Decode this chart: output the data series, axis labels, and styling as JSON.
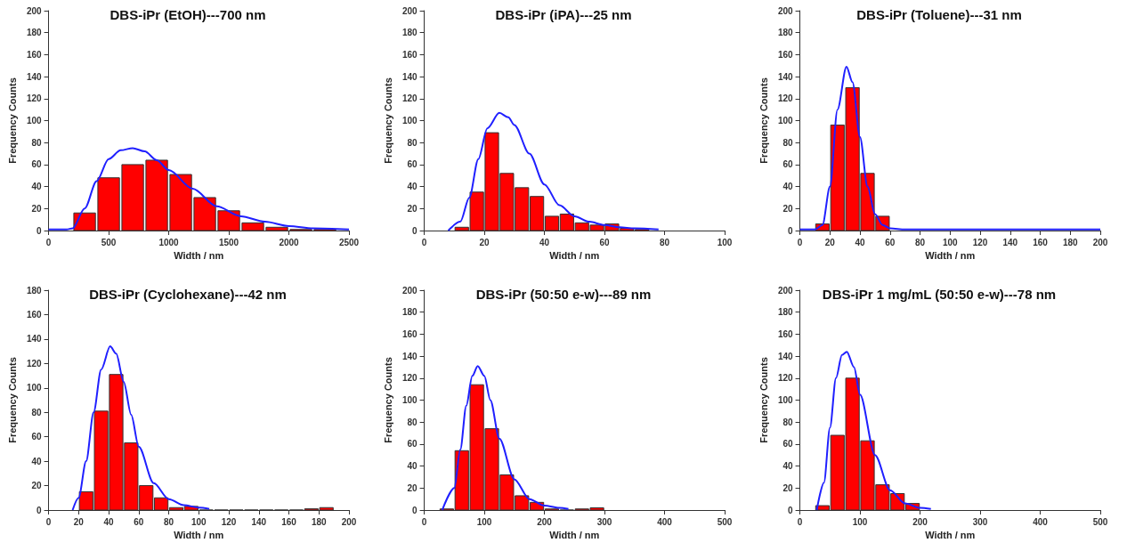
{
  "chart_data": [
    {
      "type": "histogram",
      "title": "DBS-iPr (EtOH)---700 nm",
      "xlabel": "Width / nm",
      "ylabel": "Frequency Counts",
      "bins": [
        200,
        400,
        600,
        800,
        1000,
        1200,
        1400,
        1600,
        1800,
        2000,
        2200,
        2400
      ],
      "values": [
        16,
        48,
        60,
        64,
        51,
        30,
        18,
        7,
        3,
        1,
        1
      ],
      "color": "#ff0000",
      "xlim": [
        0,
        2500
      ],
      "xticks": [
        0,
        500,
        1000,
        1500,
        2000,
        2500
      ],
      "ylim": [
        0,
        200
      ],
      "yticks": [
        0,
        20,
        40,
        60,
        80,
        100,
        120,
        140,
        160,
        180,
        200
      ],
      "grid": false,
      "marker": "none",
      "series": [
        {
          "type": "line",
          "color": "#1f1fff",
          "x": [
            0,
            150,
            200,
            300,
            400,
            500,
            600,
            700,
            800,
            900,
            1000,
            1200,
            1400,
            1600,
            1800,
            2000,
            2200,
            2500
          ],
          "values": [
            1,
            1,
            2,
            20,
            45,
            65,
            73,
            75,
            72,
            64,
            55,
            38,
            22,
            13,
            8,
            4,
            2,
            1
          ]
        }
      ]
    },
    {
      "type": "histogram",
      "title": "DBS-iPr (iPA)---25 nm",
      "xlabel": "Width / nm",
      "ylabel": "Frequency Counts",
      "bins": [
        10,
        15,
        20,
        25,
        30,
        35,
        40,
        45,
        50,
        55,
        60,
        65,
        70,
        75
      ],
      "values": [
        3,
        35,
        89,
        52,
        39,
        31,
        13,
        15,
        7,
        5,
        6,
        2,
        1
      ],
      "color": "#ff0000",
      "xlim": [
        0,
        100
      ],
      "xticks": [
        0,
        20,
        40,
        60,
        80,
        100
      ],
      "ylim": [
        0,
        200
      ],
      "yticks": [
        0,
        20,
        40,
        60,
        80,
        100,
        120,
        140,
        160,
        180,
        200
      ],
      "grid": false,
      "marker": "none",
      "series": [
        {
          "type": "line",
          "color": "#1f1fff",
          "x": [
            8,
            12,
            15,
            18,
            21,
            25,
            28,
            30,
            35,
            40,
            45,
            50,
            55,
            60,
            65,
            70,
            78
          ],
          "values": [
            0,
            8,
            30,
            65,
            93,
            107,
            103,
            96,
            70,
            42,
            23,
            13,
            8,
            5,
            3,
            2,
            1
          ]
        }
      ]
    },
    {
      "type": "histogram",
      "title": "DBS-iPr (Toluene)---31 nm",
      "xlabel": "Width / nm",
      "ylabel": "Frequency Counts",
      "bins": [
        10,
        20,
        30,
        40,
        50,
        60,
        70
      ],
      "values": [
        6,
        96,
        130,
        52,
        13,
        null
      ],
      "color": "#ff0000",
      "xlim": [
        0,
        200
      ],
      "xticks": [
        0,
        20,
        40,
        60,
        80,
        100,
        120,
        140,
        160,
        180,
        200
      ],
      "ylim": [
        0,
        200
      ],
      "yticks": [
        0,
        20,
        40,
        60,
        80,
        100,
        120,
        140,
        160,
        180,
        200
      ],
      "grid": false,
      "marker": "none",
      "series": [
        {
          "type": "line",
          "color": "#1f1fff",
          "x": [
            0,
            10,
            15,
            20,
            25,
            31,
            35,
            40,
            45,
            50,
            55,
            60,
            70,
            200
          ],
          "values": [
            1,
            1,
            5,
            40,
            110,
            149,
            135,
            85,
            40,
            15,
            5,
            2,
            1,
            1
          ]
        }
      ]
    },
    {
      "type": "histogram",
      "title": "DBS-iPr (Cyclohexane)---42 nm",
      "xlabel": "Width / nm",
      "ylabel": "Frequency Counts",
      "bins": [
        20,
        30,
        40,
        50,
        60,
        70,
        80,
        90,
        100,
        110,
        120,
        130,
        140,
        150,
        160,
        170,
        180,
        190
      ],
      "values": [
        15,
        81,
        111,
        55,
        20,
        10,
        2,
        3,
        0,
        0,
        0,
        0,
        0,
        0,
        0,
        1,
        2
      ],
      "color": "#ff0000",
      "xlim": [
        0,
        200
      ],
      "xticks": [
        0,
        20,
        40,
        60,
        80,
        100,
        120,
        140,
        160,
        180,
        200
      ],
      "ylim": [
        0,
        180
      ],
      "yticks": [
        0,
        20,
        40,
        60,
        80,
        100,
        120,
        140,
        160,
        180
      ],
      "grid": false,
      "marker": "none",
      "series": [
        {
          "type": "line",
          "color": "#1f1fff",
          "x": [
            16,
            20,
            25,
            30,
            35,
            41,
            45,
            50,
            55,
            60,
            70,
            80,
            90,
            100,
            107
          ],
          "values": [
            0,
            10,
            40,
            80,
            115,
            134,
            128,
            105,
            78,
            52,
            22,
            9,
            4,
            2,
            1
          ]
        }
      ]
    },
    {
      "type": "histogram",
      "title": "DBS-iPr (50:50 e-w)---89 nm",
      "xlabel": "Width / nm",
      "ylabel": "Frequency Counts",
      "bins": [
        25,
        50,
        75,
        100,
        125,
        150,
        175,
        200,
        225,
        250,
        275,
        300
      ],
      "values": [
        1,
        54,
        114,
        74,
        32,
        13,
        7,
        1,
        0,
        1,
        2
      ],
      "color": "#ff0000",
      "xlim": [
        0,
        500
      ],
      "xticks": [
        0,
        100,
        200,
        300,
        400,
        500
      ],
      "ylim": [
        0,
        200
      ],
      "yticks": [
        0,
        20,
        40,
        60,
        80,
        100,
        120,
        140,
        160,
        180,
        200
      ],
      "grid": false,
      "marker": "none",
      "series": [
        {
          "type": "line",
          "color": "#1f1fff",
          "x": [
            30,
            50,
            60,
            70,
            80,
            89,
            100,
            110,
            125,
            150,
            175,
            200,
            225,
            240
          ],
          "values": [
            0,
            20,
            55,
            95,
            122,
            131,
            122,
            100,
            65,
            28,
            10,
            4,
            2,
            1
          ]
        }
      ]
    },
    {
      "type": "histogram",
      "title": "DBS-iPr 1 mg/mL (50:50 e-w)---78 nm",
      "xlabel": "Width / nm",
      "ylabel": "Frequency Counts",
      "bins": [
        25,
        50,
        75,
        100,
        125,
        150,
        175,
        200
      ],
      "values": [
        4,
        68,
        120,
        63,
        23,
        15,
        6
      ],
      "color": "#ff0000",
      "xlim": [
        0,
        500
      ],
      "xticks": [
        0,
        100,
        200,
        300,
        400,
        500
      ],
      "ylim": [
        0,
        200
      ],
      "yticks": [
        0,
        20,
        40,
        60,
        80,
        100,
        120,
        140,
        160,
        180,
        200
      ],
      "grid": false,
      "marker": "none",
      "series": [
        {
          "type": "line",
          "color": "#1f1fff",
          "x": [
            28,
            40,
            50,
            60,
            70,
            78,
            90,
            100,
            125,
            150,
            175,
            200,
            218
          ],
          "values": [
            0,
            25,
            75,
            120,
            141,
            144,
            130,
            105,
            50,
            18,
            6,
            2,
            1
          ]
        }
      ]
    }
  ]
}
